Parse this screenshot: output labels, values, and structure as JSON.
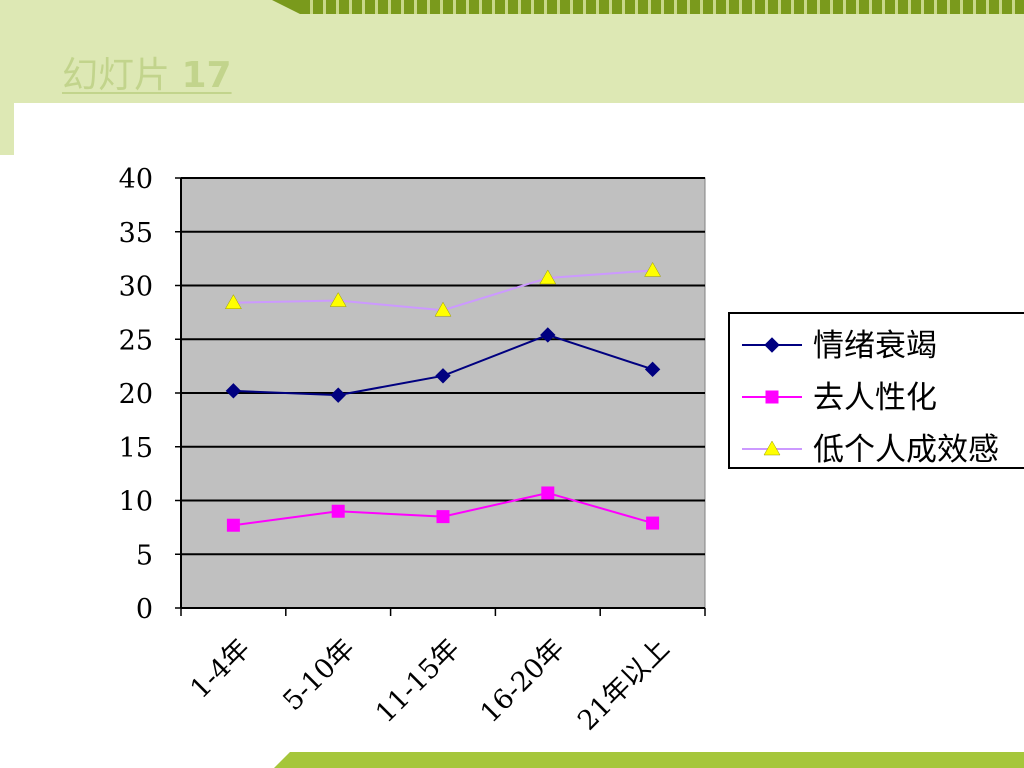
{
  "slide": {
    "title_text": "幻灯片",
    "title_number": "17",
    "colors": {
      "band": "#dde8b4",
      "stripe": "#7a9a1c",
      "bottom_band": "#a5c63b",
      "title": "#c2d48c"
    }
  },
  "chart_data": {
    "type": "line",
    "categories": [
      "1-4年",
      "5-10年",
      "11-15年",
      "16-20年",
      "21年以上"
    ],
    "series": [
      {
        "name": "情绪衰竭",
        "values": [
          20.2,
          19.8,
          21.6,
          25.4,
          22.2
        ],
        "color": "#000080",
        "marker": "diamond",
        "marker_color": "#000080"
      },
      {
        "name": "去人性化",
        "values": [
          7.7,
          9.0,
          8.5,
          10.7,
          7.9
        ],
        "color": "#ff00ff",
        "marker": "square",
        "marker_color": "#ff00ff"
      },
      {
        "name": "低个人成效感",
        "values": [
          28.4,
          28.6,
          27.7,
          30.7,
          31.4
        ],
        "color": "#cc99ff",
        "marker": "triangle",
        "marker_color": "#ffff00"
      }
    ],
    "ylim": [
      0,
      40
    ],
    "yticks": [
      "0",
      "5",
      "10",
      "15",
      "20",
      "25",
      "30",
      "35",
      "40"
    ],
    "grid": true,
    "plot_background": "#c0c0c0",
    "legend_position": "right"
  }
}
